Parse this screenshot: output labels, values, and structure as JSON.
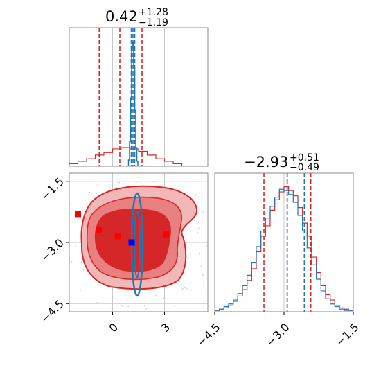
{
  "chart_data": {
    "type": "corner",
    "params": [
      "p0",
      "p1"
    ],
    "grid": true,
    "colors": {
      "red": "#d62728",
      "blue": "#1f77b4",
      "red_fill": "#e88080",
      "red_light": "#f2b8b8",
      "frame": "#888888",
      "grid": "#c8c8c8"
    },
    "panels": {
      "p0_hist": {
        "title": {
          "value": "0.42",
          "upper": "+1.28",
          "lower": "−1.19"
        },
        "xlim": [
          -2.5,
          5.5
        ],
        "red_quantiles": [
          -0.77,
          0.42,
          1.7
        ],
        "blue_quantiles": [
          1.08,
          1.18,
          1.28
        ],
        "red_hist": {
          "bins": [
            -2.5,
            -2.0,
            -1.5,
            -1.0,
            -0.5,
            0.0,
            0.5,
            1.0,
            1.5,
            2.0,
            2.5,
            3.0,
            3.5,
            4.0
          ],
          "counts": [
            0.02,
            0.04,
            0.06,
            0.09,
            0.11,
            0.14,
            0.15,
            0.14,
            0.12,
            0.09,
            0.06,
            0.04,
            0.02
          ]
        },
        "blue_hist": {
          "bins": [
            0.92,
            0.98,
            1.04,
            1.1,
            1.16,
            1.22,
            1.28,
            1.34,
            1.4,
            1.46
          ],
          "counts": [
            0.05,
            0.2,
            0.55,
            0.95,
            1.0,
            0.8,
            0.45,
            0.15,
            0.04
          ]
        }
      },
      "p1_hist": {
        "title": {
          "value": "−2.93",
          "upper": "+0.51",
          "lower": "−0.49"
        },
        "xlim": [
          -4.5,
          -1.5
        ],
        "xticks": [
          "−4.5",
          "−3.0",
          "−1.5"
        ],
        "xtick_values": [
          -4.5,
          -3.0,
          -1.5
        ],
        "red_quantiles": [
          -3.42,
          -2.93,
          -2.42
        ],
        "blue_quantiles": [
          -3.45,
          -2.93,
          -2.56
        ],
        "red_hist": {
          "bins": [
            -4.5,
            -4.4,
            -4.3,
            -4.2,
            -4.1,
            -4.0,
            -3.9,
            -3.8,
            -3.7,
            -3.6,
            -3.5,
            -3.4,
            -3.3,
            -3.2,
            -3.1,
            -3.0,
            -2.9,
            -2.8,
            -2.7,
            -2.6,
            -2.5,
            -2.4,
            -2.3,
            -2.2,
            -2.1,
            -2.0,
            -1.9,
            -1.8,
            -1.7,
            -1.6,
            -1.5
          ],
          "counts": [
            0.01,
            0.02,
            0.03,
            0.05,
            0.08,
            0.12,
            0.17,
            0.24,
            0.33,
            0.46,
            0.58,
            0.66,
            0.78,
            0.86,
            0.92,
            0.96,
            0.93,
            0.89,
            0.8,
            0.68,
            0.58,
            0.42,
            0.3,
            0.2,
            0.13,
            0.09,
            0.05,
            0.03,
            0.02,
            0.01
          ]
        },
        "blue_hist": {
          "bins": [
            -4.5,
            -4.4,
            -4.3,
            -4.2,
            -4.1,
            -4.0,
            -3.9,
            -3.8,
            -3.7,
            -3.6,
            -3.5,
            -3.4,
            -3.3,
            -3.2,
            -3.1,
            -3.0,
            -2.9,
            -2.8,
            -2.7,
            -2.6,
            -2.5,
            -2.4,
            -2.3,
            -2.2,
            -2.1,
            -2.0,
            -1.9,
            -1.8,
            -1.7,
            -1.6,
            -1.5
          ],
          "counts": [
            0.01,
            0.02,
            0.04,
            0.06,
            0.09,
            0.14,
            0.2,
            0.28,
            0.38,
            0.5,
            0.62,
            0.72,
            0.81,
            0.88,
            0.94,
            0.93,
            0.9,
            0.84,
            0.74,
            0.62,
            0.49,
            0.36,
            0.25,
            0.16,
            0.1,
            0.06,
            0.04,
            0.02,
            0.01,
            0.01
          ]
        }
      },
      "joint": {
        "xlim": [
          -2.5,
          5.5
        ],
        "ylim": [
          -4.7,
          -1.3
        ],
        "xticks": [
          "0",
          "3"
        ],
        "xtick_values": [
          0,
          3
        ],
        "yticks": [
          "−1.5",
          "−3.0",
          "−4.5"
        ],
        "ytick_values": [
          -1.5,
          -3.0,
          -4.5
        ],
        "red_points": [
          [
            -2.0,
            -2.3
          ],
          [
            -0.8,
            -2.7
          ],
          [
            0.3,
            -2.85
          ],
          [
            3.1,
            -2.8
          ]
        ],
        "blue_points": [
          [
            1.1,
            -3.0
          ]
        ],
        "red_contour_levels": 3,
        "blue_contour_levels": 2
      }
    }
  }
}
